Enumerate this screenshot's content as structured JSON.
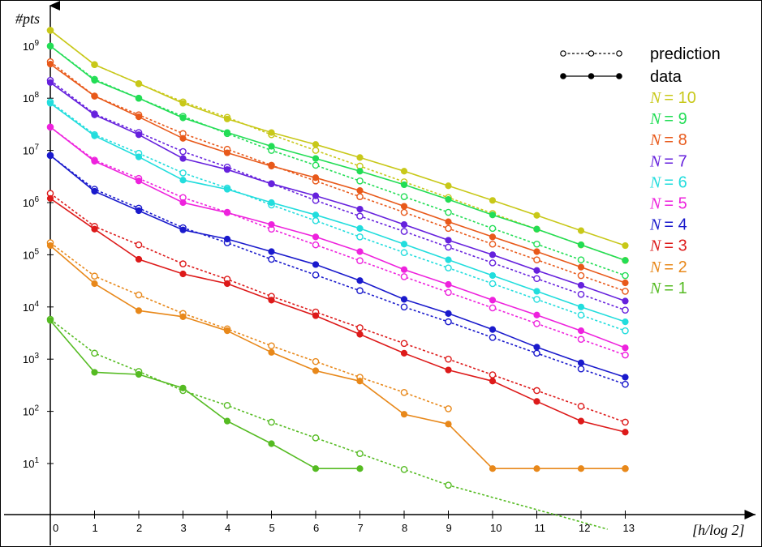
{
  "chart_data": {
    "type": "line",
    "xlabel": "[h/log 2]",
    "ylabel": "#pts",
    "y_scale": "log",
    "xlim": [
      0,
      13
    ],
    "ylim_exp": [
      1,
      9
    ],
    "x_ticks": [
      "0",
      "1",
      "2",
      "3",
      "4",
      "5",
      "6",
      "7",
      "8",
      "9",
      "10",
      "11",
      "12",
      "13"
    ],
    "y_ticks": [
      {
        "base": "10",
        "exp": "1",
        "value": 1
      },
      {
        "base": "10",
        "exp": "2",
        "value": 2
      },
      {
        "base": "10",
        "exp": "3",
        "value": 3
      },
      {
        "base": "10",
        "exp": "4",
        "value": 4
      },
      {
        "base": "10",
        "exp": "5",
        "value": 5
      },
      {
        "base": "10",
        "exp": "6",
        "value": 6
      },
      {
        "base": "10",
        "exp": "7",
        "value": 7
      },
      {
        "base": "10",
        "exp": "8",
        "value": 8
      },
      {
        "base": "10",
        "exp": "9",
        "value": 9
      }
    ],
    "legend": {
      "placement": "top-right",
      "style_entries": [
        {
          "label": "prediction",
          "style": "dashed-open"
        },
        {
          "label": "data",
          "style": "solid-filled"
        }
      ]
    },
    "x": [
      0,
      1,
      2,
      3,
      4,
      5,
      6,
      7,
      8,
      9,
      10,
      11,
      12,
      13
    ],
    "series": [
      {
        "name": "N = 10",
        "n_label": "N",
        "eq": "= 10",
        "color": "#c8c819",
        "data": [
          2000000000.0,
          440000000.0,
          190000000.0,
          80000000.0,
          40000000.0,
          22000000.0,
          13000000.0,
          7300000.0,
          4000000.0,
          2100000.0,
          1100000.0,
          570000.0,
          290000.0,
          150000.0
        ],
        "prediction": [
          2000000000.0,
          440000000.0,
          190000000.0,
          85000000.0,
          43000000.0,
          20000000.0,
          10000000.0,
          5000000.0,
          2500000.0,
          1250000.0,
          620000.0,
          310000.0,
          155000.0,
          78000.0
        ]
      },
      {
        "name": "N = 9",
        "n_label": "N",
        "eq": "= 9",
        "color": "#22dd55",
        "data": [
          1000000000.0,
          220000000.0,
          100000000.0,
          42000000.0,
          22000000.0,
          12000000.0,
          7000000.0,
          4000000.0,
          2200000.0,
          1150000.0,
          580000.0,
          310000.0,
          155000.0,
          78000.0
        ],
        "prediction": [
          1000000000.0,
          230000000.0,
          100000000.0,
          45000000.0,
          21000000.0,
          10000000.0,
          5200000.0,
          2600000.0,
          1300000.0,
          650000.0,
          320000.0,
          160000.0,
          80000.0,
          40000.0
        ]
      },
      {
        "name": "N = 8",
        "n_label": "N",
        "eq": "= 8",
        "color": "#e8591a",
        "data": [
          450000000.0,
          110000000.0,
          44000000.0,
          17000000.0,
          9000000.0,
          5000000.0,
          3000000.0,
          1700000.0,
          850000.0,
          430000.0,
          220000.0,
          115000.0,
          58000.0,
          29000.0
        ],
        "prediction": [
          500000000.0,
          110000000.0,
          48000000.0,
          21000000.0,
          10500000.0,
          5200000.0,
          2600000.0,
          1300000.0,
          650000.0,
          320000.0,
          160000.0,
          80000.0,
          40000.0,
          20000.0
        ]
      },
      {
        "name": "N = 7",
        "n_label": "N",
        "eq": "= 7",
        "color": "#6621dd",
        "data": [
          200000000.0,
          48000000.0,
          20000000.0,
          7000000.0,
          4300000.0,
          2300000.0,
          1350000.0,
          750000.0,
          380000.0,
          190000.0,
          100000.0,
          50000.0,
          26000.0,
          13000.0
        ],
        "prediction": [
          220000000.0,
          50000000.0,
          22000000.0,
          9500000.0,
          4800000.0,
          2300000.0,
          1100000.0,
          550000.0,
          280000.0,
          140000.0,
          70000.0,
          35000.0,
          17500.0,
          8700.0
        ]
      },
      {
        "name": "N = 6",
        "n_label": "N",
        "eq": "= 6",
        "color": "#22dddd",
        "data": [
          80000000.0,
          19000000.0,
          7500000.0,
          2700000.0,
          1800000.0,
          1000000.0,
          580000.0,
          320000.0,
          160000.0,
          80000.0,
          40000.0,
          20000.0,
          10000.0,
          5200.0
        ],
        "prediction": [
          85000000.0,
          20000000.0,
          8800000.0,
          3700000.0,
          1900000.0,
          900000.0,
          450000.0,
          220000.0,
          110000.0,
          56000.0,
          28000.0,
          14000.0,
          7000.0,
          3500.0
        ]
      },
      {
        "name": "N = 5",
        "n_label": "N",
        "eq": "= 5",
        "color": "#ee22dd",
        "data": [
          28000000.0,
          6200000.0,
          2600000.0,
          1000000.0,
          640000.0,
          380000.0,
          220000.0,
          115000.0,
          52000.0,
          27000.0,
          13500.0,
          7000.0,
          3500.0,
          1650.0
        ],
        "prediction": [
          28000000.0,
          6500000.0,
          2900000.0,
          1250000.0,
          650000.0,
          310000.0,
          155000.0,
          77000.0,
          38000.0,
          19000.0,
          9600.0,
          4800.0,
          2400.0,
          1200.0
        ]
      },
      {
        "name": "N = 4",
        "n_label": "N",
        "eq": "= 4",
        "color": "#1a1acc",
        "data": [
          8000000.0,
          1650000.0,
          700000.0,
          300000.0,
          200000.0,
          115000.0,
          65000.0,
          32000.0,
          14000.0,
          7500.0,
          3700.0,
          1700.0,
          850.0,
          450.0
        ],
        "prediction": [
          8000000.0,
          1800000.0,
          780000.0,
          330000.0,
          170000.0,
          82000.0,
          41000.0,
          20500.0,
          10000.0,
          5200.0,
          2600.0,
          1300.0,
          650.0,
          330.0
        ]
      },
      {
        "name": "N = 3",
        "n_label": "N",
        "eq": "= 3",
        "color": "#dd1a1a",
        "data": [
          1200000.0,
          310000.0,
          82000.0,
          43000.0,
          28000.0,
          13500.0,
          6800.0,
          3000.0,
          1300.0,
          620.0,
          380.0,
          155.0,
          65,
          40
        ],
        "prediction": [
          1500000.0,
          350000.0,
          155000.0,
          67000.0,
          34000.0,
          16000.0,
          8000.0,
          4000.0,
          2000.0,
          1000.0,
          500.0,
          250.0,
          125.0,
          62
        ]
      },
      {
        "name": "N = 2",
        "n_label": "N",
        "eq": "= 2",
        "color": "#e8881a",
        "data": [
          150000.0,
          28000.0,
          8500.0,
          6500.0,
          3500.0,
          1350.0,
          600.0,
          380.0,
          88,
          57,
          8,
          8,
          8,
          8
        ],
        "prediction": [
          170000.0,
          39000.0,
          17000.0,
          7500.0,
          3800.0,
          1800.0,
          900.0,
          450.0,
          230.0,
          112.0,
          null,
          null,
          null,
          8
        ]
      },
      {
        "name": "N = 1",
        "n_label": "N",
        "eq": "= 1",
        "color": "#55bb22",
        "data": [
          5500.0,
          560.0,
          510.0,
          280.0,
          65,
          24,
          8,
          8,
          null,
          null,
          null,
          null,
          null,
          null
        ],
        "prediction": [
          5800.0,
          1300.0,
          580.0,
          250.0,
          130.0,
          62,
          31,
          15.5,
          7.7,
          3.85,
          null,
          null,
          null,
          null
        ],
        "prediction_extension": {
          "x_end": 12.6,
          "y_end": 0.55
        }
      }
    ]
  }
}
